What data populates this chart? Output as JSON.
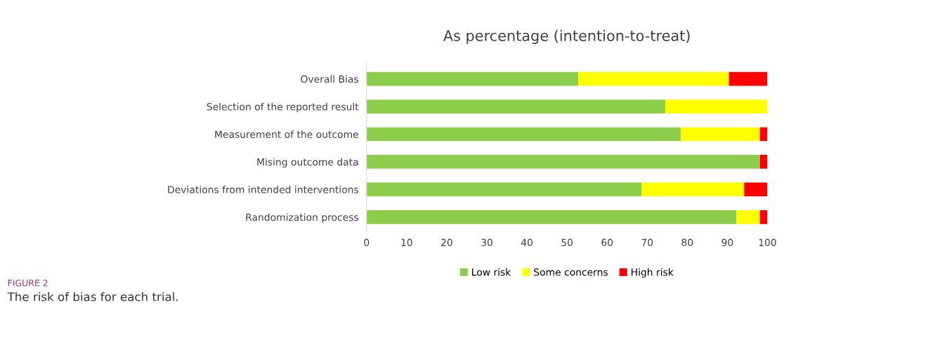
{
  "chart_data": {
    "type": "bar",
    "orientation": "horizontal",
    "stacked": true,
    "title": "As percentage (intention-to-treat)",
    "categories": [
      "Overall Bias",
      "Selection of the reported result",
      "Measurement of the outcome",
      "Mising outcome data",
      "Deviations from intended interventions",
      "Randomization process"
    ],
    "series": [
      {
        "name": "Low risk",
        "color": "#8ccd4c",
        "values": [
          52.8,
          74.5,
          78.4,
          98.1,
          68.6,
          92.3
        ]
      },
      {
        "name": "Some concerns",
        "color": "#ffff00",
        "values": [
          37.6,
          25.5,
          19.7,
          0,
          25.6,
          5.8
        ]
      },
      {
        "name": "High risk",
        "color": "#ff0000",
        "values": [
          9.6,
          0,
          1.9,
          1.9,
          5.8,
          1.9
        ]
      }
    ],
    "xlim": [
      0,
      100
    ],
    "xticks": [
      0,
      10,
      20,
      30,
      40,
      50,
      60,
      70,
      80,
      90,
      100
    ],
    "grid": false,
    "legend": "bottom",
    "annotations": [
      "FIGURE 2",
      "The risk of bias for each trial."
    ]
  }
}
